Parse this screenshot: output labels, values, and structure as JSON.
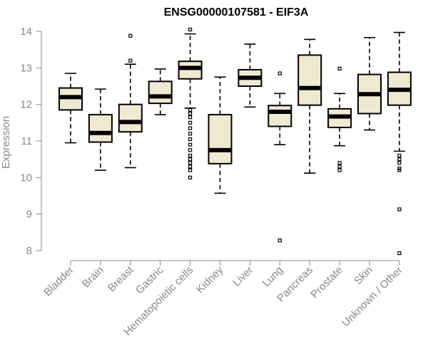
{
  "chart_data": {
    "type": "boxplot",
    "title": "ENSG00000107581 - EIF3A",
    "ylabel": "Expression",
    "xlabel": "",
    "ylim": [
      7.8,
      14.1
    ],
    "yticks": [
      8,
      9,
      10,
      11,
      12,
      13,
      14
    ],
    "categories": [
      "Bladder",
      "Brain",
      "Breast",
      "Gastric",
      "Hematopoietic cells",
      "Kidney",
      "Liver",
      "Lung",
      "Pancreas",
      "Prostate",
      "Skin",
      "Unknown / Other"
    ],
    "boxes": [
      {
        "q1": 11.85,
        "median": 12.2,
        "q3": 12.45,
        "lower": 10.95,
        "upper": 12.85,
        "outliers": []
      },
      {
        "q1": 10.97,
        "median": 11.22,
        "q3": 11.72,
        "lower": 10.2,
        "upper": 12.42,
        "outliers": []
      },
      {
        "q1": 11.25,
        "median": 11.52,
        "q3": 12.0,
        "lower": 10.27,
        "upper": 13.1,
        "outliers": [
          13.88,
          13.2
        ]
      },
      {
        "q1": 12.03,
        "median": 12.22,
        "q3": 12.63,
        "lower": 11.72,
        "upper": 12.97,
        "outliers": []
      },
      {
        "q1": 12.7,
        "median": 13.0,
        "q3": 13.18,
        "lower": 11.9,
        "upper": 13.93,
        "outliers": [
          14.05,
          11.85,
          11.75,
          11.65,
          11.5,
          11.35,
          11.2,
          11.05,
          10.9,
          10.75,
          10.6,
          10.5,
          10.4,
          10.3,
          10.2,
          10.0
        ]
      },
      {
        "q1": 10.38,
        "median": 10.75,
        "q3": 11.72,
        "lower": 9.57,
        "upper": 12.75,
        "outliers": []
      },
      {
        "q1": 12.5,
        "median": 12.73,
        "q3": 12.95,
        "lower": 11.93,
        "upper": 13.65,
        "outliers": []
      },
      {
        "q1": 11.4,
        "median": 11.8,
        "q3": 11.97,
        "lower": 10.9,
        "upper": 12.3,
        "outliers": [
          12.85,
          8.28
        ]
      },
      {
        "q1": 11.98,
        "median": 12.45,
        "q3": 13.35,
        "lower": 10.12,
        "upper": 13.78,
        "outliers": []
      },
      {
        "q1": 11.37,
        "median": 11.67,
        "q3": 11.88,
        "lower": 10.87,
        "upper": 12.3,
        "outliers": [
          12.98,
          10.4,
          10.3,
          10.2
        ]
      },
      {
        "q1": 11.75,
        "median": 12.28,
        "q3": 12.82,
        "lower": 11.3,
        "upper": 13.83,
        "outliers": []
      },
      {
        "q1": 11.98,
        "median": 12.4,
        "q3": 12.88,
        "lower": 10.72,
        "upper": 13.97,
        "outliers": [
          10.6,
          10.5,
          10.4,
          10.25,
          10.2,
          9.13,
          7.93
        ]
      }
    ]
  }
}
